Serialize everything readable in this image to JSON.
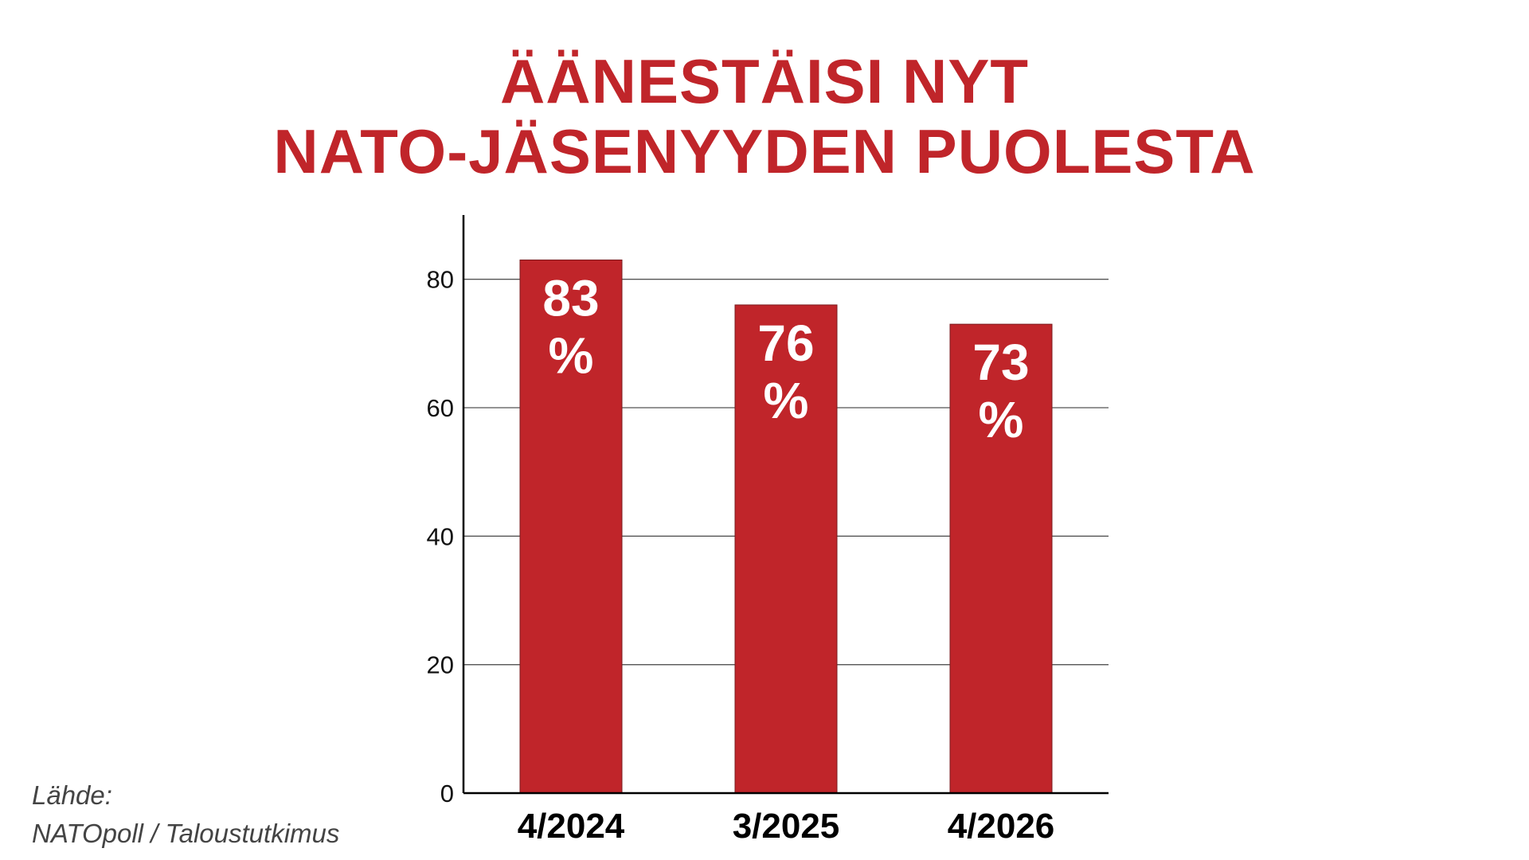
{
  "title": {
    "line1": "ÄÄNESTÄISI NYT",
    "line2": "NATO-JÄSENYYDEN PUOLESTA"
  },
  "source": {
    "line1": "Lähde:",
    "line2": "NATOpoll / Taloustutkimus"
  },
  "colors": {
    "bar": "#c0252a",
    "title": "#c0252a",
    "label": "#ffffff",
    "axis": "#000000",
    "grid": "#555555"
  },
  "chart_data": {
    "type": "bar",
    "categories": [
      "4/2024",
      "3/2025",
      "4/2026"
    ],
    "values": [
      83,
      76,
      73
    ],
    "data_labels": [
      [
        "83",
        "%"
      ],
      [
        "76",
        "%"
      ],
      [
        "73",
        "%"
      ]
    ],
    "yticks": [
      0,
      20,
      40,
      60,
      80
    ],
    "ylim": [
      0,
      90
    ],
    "grid": true,
    "xlabel": "",
    "ylabel": ""
  }
}
